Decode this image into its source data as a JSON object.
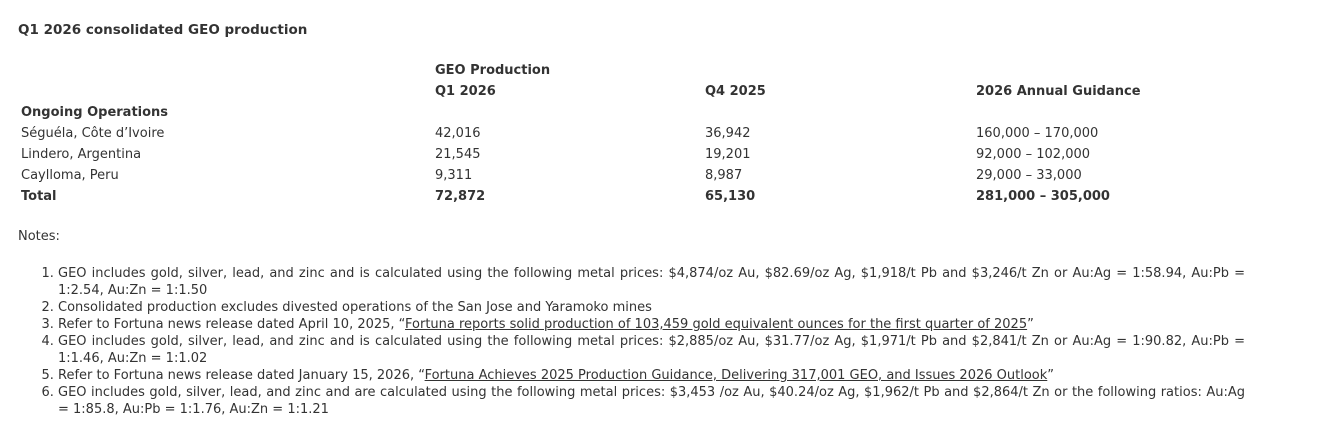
{
  "title": "Q1 2026 consolidated GEO production",
  "table": {
    "header_group": "GEO Production",
    "columns": [
      "Q1 2026",
      "Q4 2025",
      "2026 Annual Guidance"
    ],
    "section": "Ongoing Operations",
    "rows": [
      [
        "Séguéla, Côte d’Ivoire",
        "42,016",
        "36,942",
        "160,000 – 170,000"
      ],
      [
        "Lindero, Argentina",
        "21,545",
        "19,201",
        "92,000 – 102,000"
      ],
      [
        "Caylloma, Peru",
        "9,311",
        "8,987",
        "29,000 – 33,000"
      ]
    ],
    "total": [
      "Total",
      "72,872",
      "65,130",
      "281,000 – 305,000"
    ]
  },
  "notes_label": "Notes:",
  "notes": [
    {
      "text": "GEO includes gold, silver, lead, and zinc and is calculated using the following metal prices: $4,874/oz Au, $82.69/oz Ag, $1,918/t Pb and $3,246/t Zn or Au:Ag = 1:58.94, Au:Pb = 1:2.54, Au:Zn = 1:1.50"
    },
    {
      "text": "Consolidated production excludes divested operations of the San Jose and Yaramoko mines"
    },
    {
      "text": "Refer to Fortuna news release dated April 10, 2025, “",
      "link": "Fortuna reports solid production of 103,459 gold equivalent ounces for the first quarter of 2025",
      "tail": "”"
    },
    {
      "text": "GEO includes gold, silver, lead, and zinc and is calculated using the following metal prices: $2,885/oz Au, $31.77/oz Ag, $1,971/t Pb and $2,841/t Zn or Au:Ag = 1:90.82, Au:Pb = 1:1.46, Au:Zn = 1:1.02"
    },
    {
      "text": "Refer to Fortuna news release dated January 15, 2026, “",
      "link": "Fortuna Achieves 2025 Production Guidance, Delivering 317,001 GEO, and Issues 2026 Outlook",
      "tail": "”"
    },
    {
      "text": "GEO includes gold, silver, lead, and zinc and are calculated using the following metal prices: $3,453 /oz Au, $40.24/oz Ag, $1,962/t Pb and $2,864/t Zn or the following ratios: Au:Ag = 1:85.8, Au:Pb = 1:1.76, Au:Zn = 1:1.21"
    }
  ]
}
